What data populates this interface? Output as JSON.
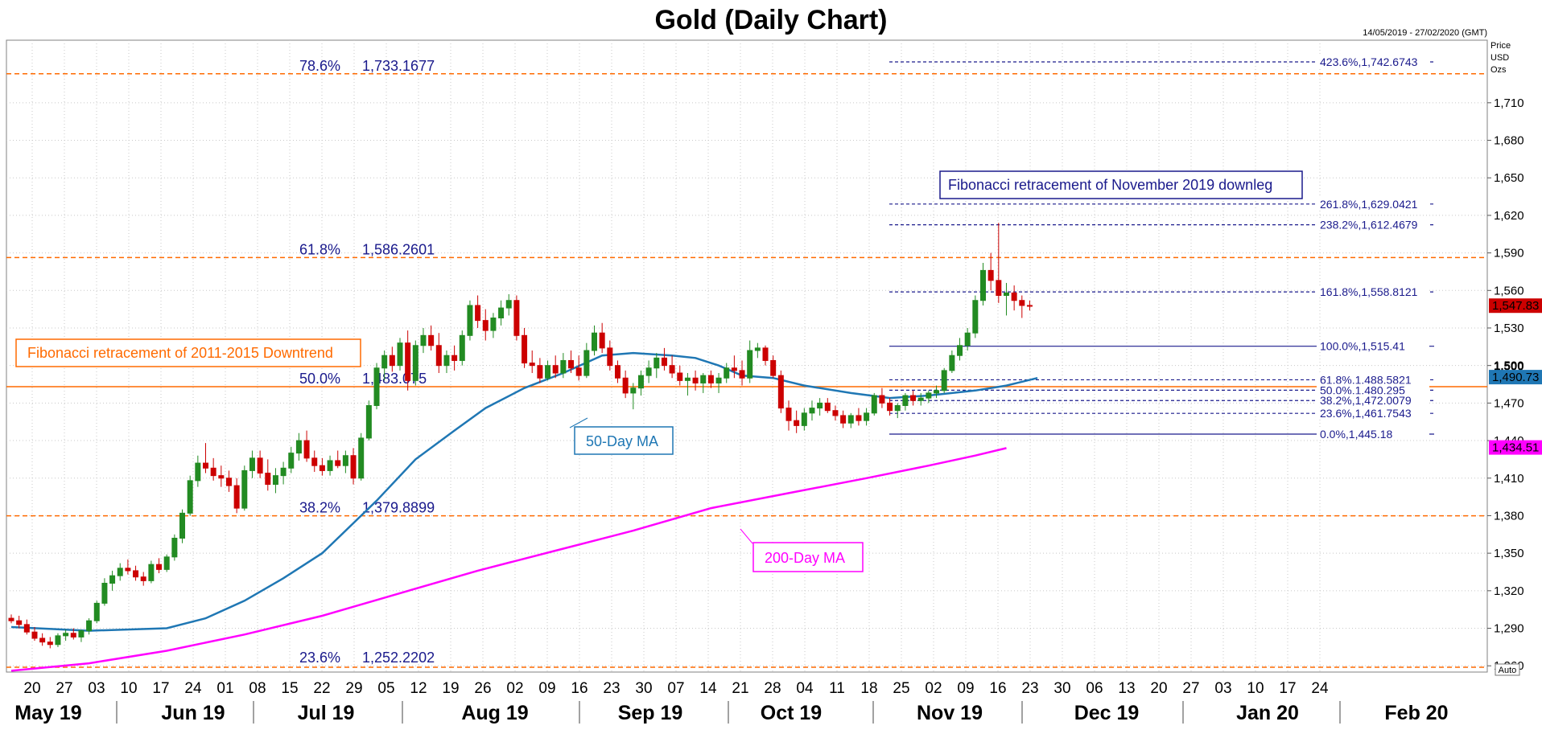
{
  "chart_data": {
    "type": "candlestick",
    "title": "Gold (Daily Chart)",
    "date_range": "14/05/2019 - 27/02/2020 (GMT)",
    "units": [
      "Price",
      "USD",
      "Ozs"
    ],
    "auto_label": "Auto",
    "ylim": [
      1255,
      1760
    ],
    "y_ticks": [
      "1,260",
      "1,290",
      "1,320",
      "1,350",
      "1,380",
      "1,410",
      "1,440",
      "1,470",
      "1,500",
      "1,530",
      "1,560",
      "1,590",
      "1,620",
      "1,650",
      "1,680",
      "1,710"
    ],
    "y_tick_values": [
      1260,
      1290,
      1320,
      1350,
      1380,
      1410,
      1440,
      1470,
      1500,
      1530,
      1560,
      1590,
      1620,
      1650,
      1680,
      1710
    ],
    "x_day_labels": [
      "20",
      "27",
      "03",
      "10",
      "17",
      "24",
      "01",
      "08",
      "15",
      "22",
      "29",
      "05",
      "12",
      "19",
      "26",
      "02",
      "09",
      "16",
      "23",
      "30",
      "07",
      "14",
      "21",
      "28",
      "04",
      "11",
      "18",
      "25",
      "02",
      "09",
      "16",
      "23",
      "30",
      "06",
      "13",
      "20",
      "27",
      "03",
      "10",
      "17",
      "24"
    ],
    "x_month_labels": [
      "May 19",
      "Jun 19",
      "Jul 19",
      "Aug 19",
      "Sep 19",
      "Oct 19",
      "Nov 19",
      "Dec 19",
      "Jan 20",
      "Feb 20"
    ],
    "last_price_label": "1,547.83",
    "ma50_label": "1,490.73",
    "ma200_label": "1,434.51",
    "big_tick": "1,500",
    "long_fib": {
      "title": "Fibonacci retracement of 2011-2015 Downtrend",
      "levels": [
        {
          "pct": "78.6%",
          "value": "1,733.1677",
          "price": 1733.1677
        },
        {
          "pct": "61.8%",
          "value": "1,586.2601",
          "price": 1586.2601
        },
        {
          "pct": "50.0%",
          "value": "1,483.075",
          "price": 1483.075
        },
        {
          "pct": "38.2%",
          "value": "1,379.8899",
          "price": 1379.8899
        },
        {
          "pct": "23.6%",
          "value": "1,252.2202",
          "price": 1252.2202
        }
      ]
    },
    "short_fib": {
      "title": "Fibonacci retracement of November 2019 downleg",
      "levels": [
        {
          "label": "423.6%,1,742.6743",
          "price": 1742.6743
        },
        {
          "label": "261.8%,1,629.0421",
          "price": 1629.0421
        },
        {
          "label": "238.2%,1,612.4679",
          "price": 1612.4679
        },
        {
          "label": "161.8%,1,558.8121",
          "price": 1558.8121
        },
        {
          "label": "100.0%,1,515.41",
          "price": 1515.41
        },
        {
          "label": "61.8%,1,488.5821",
          "price": 1488.5821
        },
        {
          "label": "50.0%,1,480.295",
          "price": 1480.295
        },
        {
          "label": "38.2%,1,472.0079",
          "price": 1472.0079
        },
        {
          "label": "23.6%,1,461.7543",
          "price": 1461.7543
        },
        {
          "label": "0.0%,1,445.18",
          "price": 1445.18
        }
      ]
    },
    "ma50_name": "50-Day MA",
    "ma200_name": "200-Day MA",
    "ma50": [
      [
        0,
        1291
      ],
      [
        10,
        1288
      ],
      [
        20,
        1290
      ],
      [
        25,
        1298
      ],
      [
        30,
        1312
      ],
      [
        35,
        1330
      ],
      [
        40,
        1350
      ],
      [
        43,
        1368
      ],
      [
        47,
        1392
      ],
      [
        52,
        1425
      ],
      [
        57,
        1448
      ],
      [
        61,
        1466
      ],
      [
        66,
        1482
      ],
      [
        71,
        1494
      ],
      [
        76,
        1508
      ],
      [
        80,
        1510
      ],
      [
        85,
        1508
      ],
      [
        88,
        1506
      ],
      [
        91,
        1500
      ],
      [
        94,
        1492
      ],
      [
        98,
        1490
      ],
      [
        102,
        1484
      ],
      [
        108,
        1478
      ],
      [
        113,
        1474
      ],
      [
        118,
        1476
      ],
      [
        124,
        1480
      ],
      [
        128,
        1484
      ],
      [
        132,
        1490
      ]
    ],
    "ma200": [
      [
        0,
        1256
      ],
      [
        10,
        1262
      ],
      [
        20,
        1272
      ],
      [
        30,
        1285
      ],
      [
        40,
        1300
      ],
      [
        50,
        1318
      ],
      [
        60,
        1336
      ],
      [
        70,
        1352
      ],
      [
        80,
        1368
      ],
      [
        90,
        1386
      ],
      [
        100,
        1398
      ],
      [
        110,
        1410
      ],
      [
        118,
        1420
      ],
      [
        124,
        1428
      ],
      [
        128,
        1434
      ]
    ],
    "colors": {
      "up": "#228b22",
      "down": "#cc0000",
      "ma50": "#1f77b4",
      "ma200": "#ff00ff",
      "long_fib": "#ff6a00",
      "short_fib": "#1a1a8c"
    },
    "candles": [
      [
        1298,
        1301,
        1294,
        1296
      ],
      [
        1296,
        1300,
        1290,
        1293
      ],
      [
        1293,
        1297,
        1285,
        1287
      ],
      [
        1287,
        1291,
        1280,
        1282
      ],
      [
        1282,
        1286,
        1276,
        1279
      ],
      [
        1279,
        1283,
        1274,
        1277
      ],
      [
        1277,
        1286,
        1275,
        1284
      ],
      [
        1284,
        1289,
        1280,
        1286
      ],
      [
        1286,
        1290,
        1281,
        1283
      ],
      [
        1283,
        1289,
        1279,
        1288
      ],
      [
        1288,
        1298,
        1285,
        1296
      ],
      [
        1296,
        1312,
        1294,
        1310
      ],
      [
        1310,
        1330,
        1308,
        1326
      ],
      [
        1326,
        1336,
        1320,
        1332
      ],
      [
        1332,
        1342,
        1328,
        1338
      ],
      [
        1338,
        1345,
        1333,
        1336
      ],
      [
        1336,
        1340,
        1328,
        1331
      ],
      [
        1331,
        1335,
        1324,
        1328
      ],
      [
        1328,
        1344,
        1326,
        1341
      ],
      [
        1341,
        1346,
        1334,
        1337
      ],
      [
        1337,
        1349,
        1335,
        1347
      ],
      [
        1347,
        1365,
        1344,
        1362
      ],
      [
        1362,
        1385,
        1358,
        1382
      ],
      [
        1382,
        1412,
        1380,
        1408
      ],
      [
        1408,
        1428,
        1403,
        1422
      ],
      [
        1422,
        1438,
        1414,
        1418
      ],
      [
        1418,
        1426,
        1408,
        1412
      ],
      [
        1412,
        1420,
        1403,
        1410
      ],
      [
        1410,
        1416,
        1399,
        1404
      ],
      [
        1404,
        1410,
        1382,
        1386
      ],
      [
        1386,
        1420,
        1384,
        1416
      ],
      [
        1416,
        1432,
        1410,
        1426
      ],
      [
        1426,
        1432,
        1410,
        1414
      ],
      [
        1414,
        1425,
        1400,
        1405
      ],
      [
        1405,
        1418,
        1398,
        1412
      ],
      [
        1412,
        1423,
        1405,
        1418
      ],
      [
        1418,
        1435,
        1414,
        1430
      ],
      [
        1430,
        1446,
        1424,
        1440
      ],
      [
        1440,
        1448,
        1423,
        1426
      ],
      [
        1426,
        1432,
        1415,
        1420
      ],
      [
        1420,
        1426,
        1412,
        1416
      ],
      [
        1416,
        1428,
        1412,
        1424
      ],
      [
        1424,
        1432,
        1418,
        1420
      ],
      [
        1420,
        1432,
        1414,
        1428
      ],
      [
        1428,
        1434,
        1405,
        1410
      ],
      [
        1410,
        1446,
        1408,
        1442
      ],
      [
        1442,
        1472,
        1440,
        1468
      ],
      [
        1468,
        1502,
        1465,
        1498
      ],
      [
        1498,
        1512,
        1488,
        1508
      ],
      [
        1508,
        1515,
        1495,
        1500
      ],
      [
        1500,
        1522,
        1496,
        1518
      ],
      [
        1518,
        1528,
        1480,
        1488
      ],
      [
        1488,
        1520,
        1484,
        1516
      ],
      [
        1516,
        1530,
        1510,
        1524
      ],
      [
        1524,
        1532,
        1512,
        1516
      ],
      [
        1516,
        1526,
        1494,
        1500
      ],
      [
        1500,
        1512,
        1494,
        1508
      ],
      [
        1508,
        1516,
        1496,
        1504
      ],
      [
        1504,
        1528,
        1500,
        1524
      ],
      [
        1524,
        1552,
        1520,
        1548
      ],
      [
        1548,
        1556,
        1530,
        1536
      ],
      [
        1536,
        1545,
        1520,
        1528
      ],
      [
        1528,
        1542,
        1522,
        1538
      ],
      [
        1538,
        1552,
        1532,
        1546
      ],
      [
        1546,
        1557,
        1540,
        1552
      ],
      [
        1552,
        1556,
        1520,
        1524
      ],
      [
        1524,
        1530,
        1498,
        1502
      ],
      [
        1502,
        1512,
        1494,
        1500
      ],
      [
        1500,
        1506,
        1486,
        1490
      ],
      [
        1490,
        1504,
        1488,
        1500
      ],
      [
        1500,
        1508,
        1490,
        1494
      ],
      [
        1494,
        1510,
        1490,
        1504
      ],
      [
        1504,
        1512,
        1494,
        1498
      ],
      [
        1498,
        1508,
        1488,
        1492
      ],
      [
        1492,
        1518,
        1490,
        1512
      ],
      [
        1512,
        1532,
        1508,
        1526
      ],
      [
        1526,
        1534,
        1510,
        1514
      ],
      [
        1514,
        1520,
        1496,
        1500
      ],
      [
        1500,
        1504,
        1486,
        1490
      ],
      [
        1490,
        1496,
        1474,
        1478
      ],
      [
        1478,
        1486,
        1465,
        1482
      ],
      [
        1482,
        1496,
        1476,
        1492
      ],
      [
        1492,
        1504,
        1486,
        1498
      ],
      [
        1498,
        1510,
        1490,
        1506
      ],
      [
        1506,
        1514,
        1496,
        1500
      ],
      [
        1500,
        1508,
        1490,
        1494
      ],
      [
        1494,
        1500,
        1484,
        1488
      ],
      [
        1488,
        1494,
        1476,
        1490
      ],
      [
        1490,
        1496,
        1480,
        1486
      ],
      [
        1486,
        1494,
        1478,
        1492
      ],
      [
        1492,
        1496,
        1482,
        1486
      ],
      [
        1486,
        1494,
        1478,
        1490
      ],
      [
        1490,
        1502,
        1486,
        1498
      ],
      [
        1498,
        1508,
        1490,
        1496
      ],
      [
        1496,
        1504,
        1484,
        1490
      ],
      [
        1490,
        1520,
        1486,
        1512
      ],
      [
        1512,
        1518,
        1506,
        1514
      ],
      [
        1514,
        1516,
        1500,
        1504
      ],
      [
        1504,
        1508,
        1490,
        1492
      ],
      [
        1492,
        1496,
        1462,
        1466
      ],
      [
        1466,
        1472,
        1448,
        1456
      ],
      [
        1456,
        1464,
        1446,
        1452
      ],
      [
        1452,
        1466,
        1448,
        1462
      ],
      [
        1462,
        1472,
        1456,
        1466
      ],
      [
        1466,
        1474,
        1460,
        1470
      ],
      [
        1470,
        1474,
        1462,
        1464
      ],
      [
        1464,
        1468,
        1456,
        1460
      ],
      [
        1460,
        1464,
        1450,
        1454
      ],
      [
        1454,
        1462,
        1450,
        1460
      ],
      [
        1460,
        1466,
        1452,
        1456
      ],
      [
        1456,
        1466,
        1452,
        1462
      ],
      [
        1462,
        1478,
        1460,
        1476
      ],
      [
        1476,
        1482,
        1466,
        1470
      ],
      [
        1470,
        1474,
        1460,
        1464
      ],
      [
        1464,
        1470,
        1458,
        1468
      ],
      [
        1468,
        1478,
        1464,
        1476
      ],
      [
        1476,
        1480,
        1468,
        1472
      ],
      [
        1472,
        1478,
        1468,
        1474
      ],
      [
        1474,
        1480,
        1470,
        1478
      ],
      [
        1478,
        1484,
        1474,
        1480
      ],
      [
        1480,
        1498,
        1478,
        1496
      ],
      [
        1496,
        1512,
        1494,
        1508
      ],
      [
        1508,
        1522,
        1504,
        1516
      ],
      [
        1516,
        1530,
        1512,
        1526
      ],
      [
        1526,
        1556,
        1522,
        1552
      ],
      [
        1552,
        1582,
        1548,
        1576
      ],
      [
        1576,
        1590,
        1560,
        1568
      ],
      [
        1568,
        1614,
        1550,
        1556
      ],
      [
        1556,
        1566,
        1540,
        1558
      ],
      [
        1558,
        1564,
        1544,
        1552
      ],
      [
        1552,
        1556,
        1538,
        1548
      ],
      [
        1548,
        1552,
        1544,
        1547.83
      ]
    ]
  }
}
